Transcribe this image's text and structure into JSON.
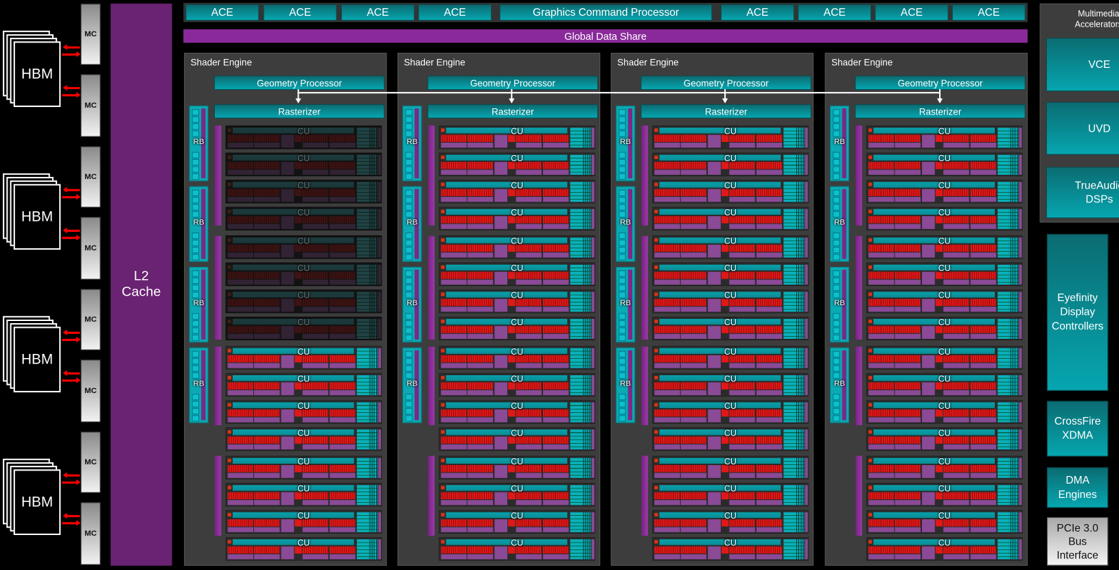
{
  "colors": {
    "teal": "#06a6b0",
    "purple": "#6a2272",
    "gds_purple": "#8a2a9a",
    "memory_arrow": "#ff0000",
    "background": "#000000",
    "shader_engine_bg": "#3d3d3d"
  },
  "memory": {
    "hbm_label": "HBM",
    "mc_label": "MC",
    "stack_count": 4
  },
  "l2_cache": "L2\nCache",
  "front_end": {
    "ace_left": [
      "ACE",
      "ACE",
      "ACE",
      "ACE"
    ],
    "command_processor": "Graphics Command Processor",
    "ace_right": [
      "ACE",
      "ACE",
      "ACE",
      "ACE"
    ],
    "global_data_share": "Global Data Share"
  },
  "shader_engines": [
    {
      "title": "Shader Engine",
      "geometry": "Geometry Processor",
      "rasterizer": "Rasterizer",
      "rb_label": "RB",
      "cu_label": "CU",
      "cu_enabled": [
        false,
        false,
        false,
        false,
        false,
        false,
        false,
        false,
        true,
        true,
        true,
        true,
        true,
        true,
        true,
        true
      ]
    },
    {
      "title": "Shader Engine",
      "geometry": "Geometry Processor",
      "rasterizer": "Rasterizer",
      "rb_label": "RB",
      "cu_label": "CU",
      "cu_enabled": [
        true,
        true,
        true,
        true,
        true,
        true,
        true,
        true,
        true,
        true,
        true,
        true,
        true,
        true,
        true,
        true
      ]
    },
    {
      "title": "Shader Engine",
      "geometry": "Geometry Processor",
      "rasterizer": "Rasterizer",
      "rb_label": "RB",
      "cu_label": "CU",
      "cu_enabled": [
        true,
        true,
        true,
        true,
        true,
        true,
        true,
        true,
        true,
        true,
        true,
        true,
        true,
        true,
        true,
        true
      ]
    },
    {
      "title": "Shader Engine",
      "geometry": "Geometry Processor",
      "rasterizer": "Rasterizer",
      "rb_label": "RB",
      "cu_label": "CU",
      "cu_enabled": [
        true,
        true,
        true,
        true,
        true,
        true,
        true,
        true,
        true,
        true,
        true,
        true,
        true,
        true,
        true,
        true
      ]
    }
  ],
  "right_panel": {
    "multimedia_title": "Multimedia\nAccelerators",
    "vce": "VCE",
    "uvd": "UVD",
    "trueaudio": "TrueAudio\nDSPs",
    "eyefinity": "Eyefinity\nDisplay\nControllers",
    "crossfire": "CrossFire\nXDMA",
    "dma": "DMA\nEngines",
    "pcie": "PCIe 3.0\nBus\nInterface"
  }
}
